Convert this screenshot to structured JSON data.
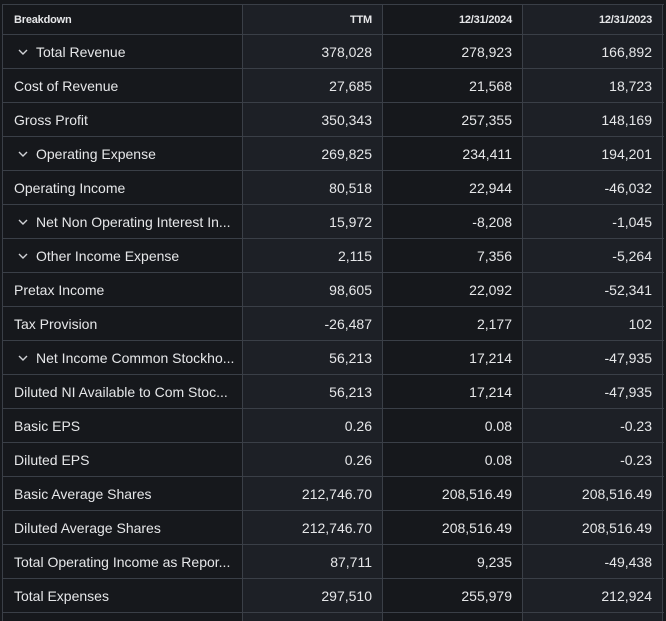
{
  "table": {
    "headers": [
      "Breakdown",
      "TTM",
      "12/31/2024",
      "12/31/2023"
    ],
    "rows": [
      {
        "label": "Total Revenue",
        "expandable": true,
        "values": [
          "378,028",
          "278,923",
          "166,892"
        ]
      },
      {
        "label": "Cost of Revenue",
        "expandable": false,
        "values": [
          "27,685",
          "21,568",
          "18,723"
        ]
      },
      {
        "label": "Gross Profit",
        "expandable": false,
        "values": [
          "350,343",
          "257,355",
          "148,169"
        ]
      },
      {
        "label": "Operating Expense",
        "expandable": true,
        "values": [
          "269,825",
          "234,411",
          "194,201"
        ]
      },
      {
        "label": "Operating Income",
        "expandable": false,
        "values": [
          "80,518",
          "22,944",
          "-46,032"
        ]
      },
      {
        "label": "Net Non Operating Interest In...",
        "expandable": true,
        "values": [
          "15,972",
          "-8,208",
          "-1,045"
        ]
      },
      {
        "label": "Other Income Expense",
        "expandable": true,
        "values": [
          "2,115",
          "7,356",
          "-5,264"
        ]
      },
      {
        "label": "Pretax Income",
        "expandable": false,
        "values": [
          "98,605",
          "22,092",
          "-52,341"
        ]
      },
      {
        "label": "Tax Provision",
        "expandable": false,
        "values": [
          "-26,487",
          "2,177",
          "102"
        ]
      },
      {
        "label": "Net Income Common Stockho...",
        "expandable": true,
        "values": [
          "56,213",
          "17,214",
          "-47,935"
        ]
      },
      {
        "label": "Diluted NI Available to Com Stoc...",
        "expandable": false,
        "values": [
          "56,213",
          "17,214",
          "-47,935"
        ]
      },
      {
        "label": "Basic EPS",
        "expandable": false,
        "values": [
          "0.26",
          "0.08",
          "-0.23"
        ]
      },
      {
        "label": "Diluted EPS",
        "expandable": false,
        "values": [
          "0.26",
          "0.08",
          "-0.23"
        ]
      },
      {
        "label": "Basic Average Shares",
        "expandable": false,
        "values": [
          "212,746.70",
          "208,516.49",
          "208,516.49"
        ]
      },
      {
        "label": "Diluted Average Shares",
        "expandable": false,
        "values": [
          "212,746.70",
          "208,516.49",
          "208,516.49"
        ]
      },
      {
        "label": "Total Operating Income as Repor...",
        "expandable": false,
        "values": [
          "87,711",
          "9,235",
          "-49,438"
        ]
      },
      {
        "label": "Total Expenses",
        "expandable": false,
        "values": [
          "297,510",
          "255,979",
          "212,924"
        ]
      }
    ]
  },
  "icons": {
    "expand": "chevron-down-icon"
  }
}
